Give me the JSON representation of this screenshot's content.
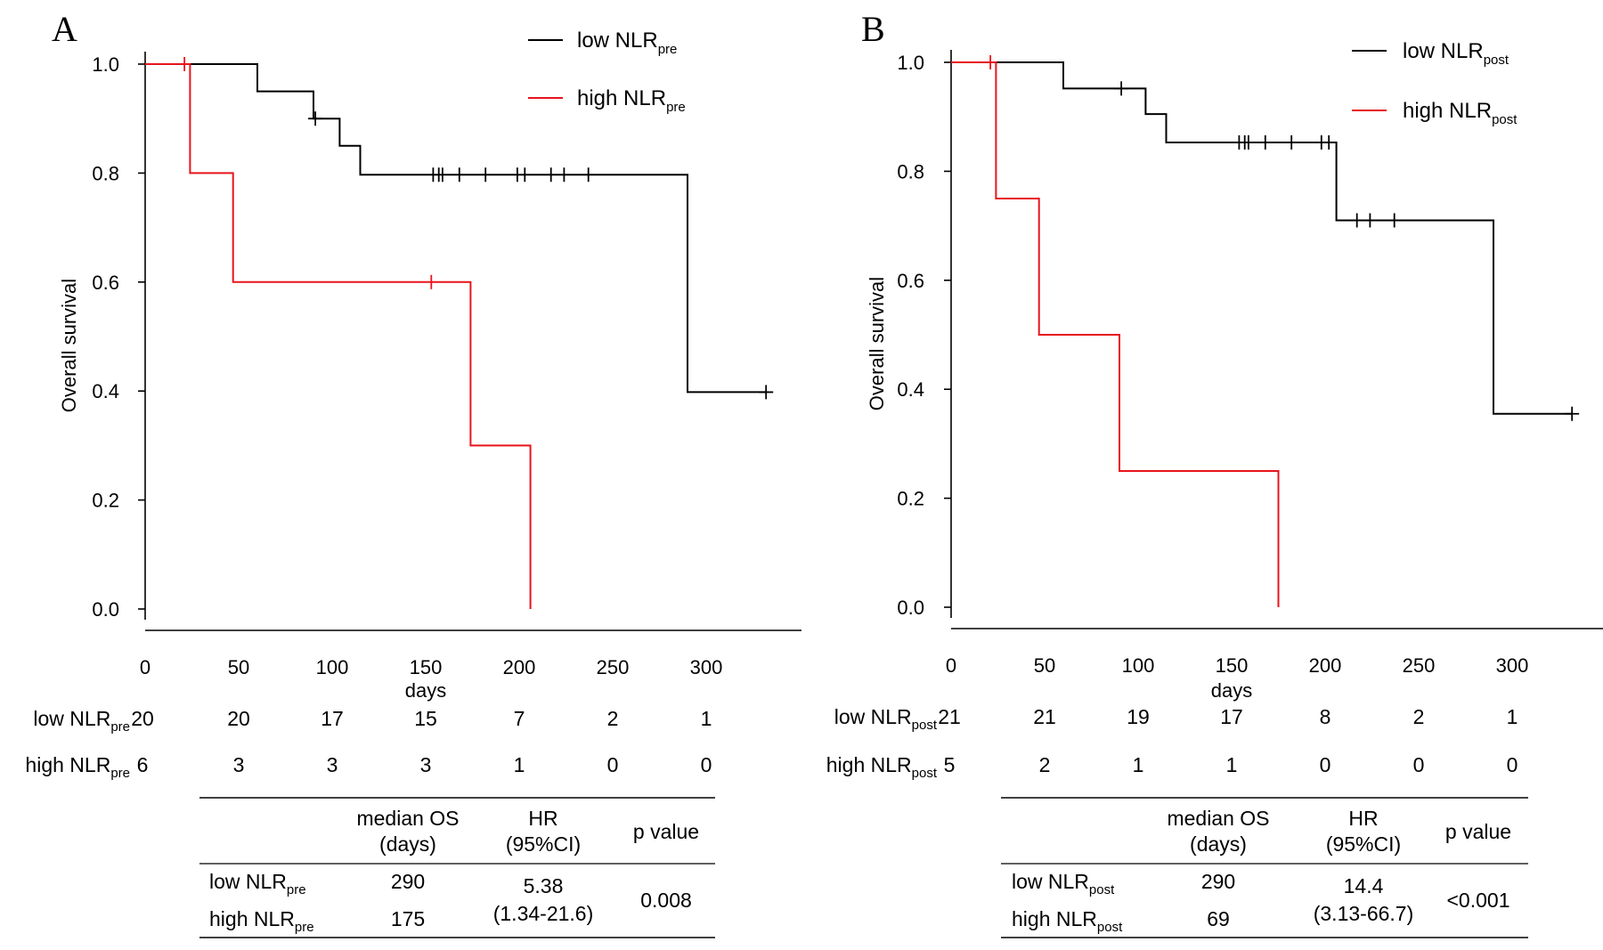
{
  "chart_data": [
    {
      "type": "line",
      "panel": "A",
      "xlabel": "days",
      "ylabel": "Overall survival",
      "xlim": [
        0,
        335
      ],
      "ylim": [
        0,
        1
      ],
      "x_ticks": [
        "0",
        "50",
        "100",
        "150",
        "200",
        "250",
        "300"
      ],
      "x_tick_values": [
        0,
        50,
        100,
        150,
        200,
        250,
        300
      ],
      "y_ticks": [
        "0.0",
        "0.2",
        "0.4",
        "0.6",
        "0.8",
        "1.0"
      ],
      "y_tick_values": [
        0,
        0.2,
        0.4,
        0.6,
        0.8,
        1.0
      ],
      "legend_position": "top-right",
      "series": [
        {
          "name": "low NLR",
          "name_sub": "pre",
          "color": "#000000",
          "steps": [
            [
              0,
              1.0
            ],
            [
              60,
              0.95
            ],
            [
              90,
              0.9
            ],
            [
              104,
              0.85
            ],
            [
              115,
              0.797
            ],
            [
              290,
              0.398
            ],
            [
              332,
              0.398
            ]
          ],
          "censors": [
            [
              91,
              0.9
            ],
            [
              154,
              0.797
            ],
            [
              157,
              0.797
            ],
            [
              159,
              0.797
            ],
            [
              168,
              0.797
            ],
            [
              182,
              0.797
            ],
            [
              199,
              0.797
            ],
            [
              203,
              0.797
            ],
            [
              217,
              0.797
            ],
            [
              224,
              0.797
            ],
            [
              237,
              0.797
            ],
            [
              332,
              0.398
            ]
          ]
        },
        {
          "name": "high NLR",
          "name_sub": "pre",
          "color": "#e8141b",
          "steps": [
            [
              0,
              1.0
            ],
            [
              24,
              0.8
            ],
            [
              47,
              0.6
            ],
            [
              174,
              0.3
            ],
            [
              206,
              0.0
            ]
          ],
          "censors": [
            [
              21,
              1.0
            ],
            [
              153,
              0.6
            ]
          ]
        }
      ],
      "risk_table": {
        "times": [
          0,
          50,
          100,
          150,
          200,
          250,
          300
        ],
        "rows": [
          {
            "label": "low NLR",
            "sub": "pre",
            "counts": [
              "20",
              "20",
              "17",
              "15",
              "7",
              "2",
              "1"
            ]
          },
          {
            "label": "high NLR",
            "sub": "pre",
            "counts": [
              "6",
              "3",
              "3",
              "3",
              "1",
              "0",
              "0"
            ]
          }
        ]
      },
      "summary_table": {
        "headers": [
          [
            "median OS",
            "(days)"
          ],
          [
            "HR",
            "(95%CI)"
          ],
          [
            "p value"
          ]
        ],
        "rows": [
          {
            "label": "low NLR",
            "sub": "pre",
            "median_os": "290"
          },
          {
            "label": "high NLR",
            "sub": "pre",
            "median_os": "175"
          }
        ],
        "hr": "5.38",
        "ci": "(1.34-21.6)",
        "p_value": "0.008"
      }
    },
    {
      "type": "line",
      "panel": "B",
      "xlabel": "days",
      "ylabel": "Overall survival",
      "xlim": [
        0,
        335
      ],
      "ylim": [
        0,
        1
      ],
      "x_ticks": [
        "0",
        "50",
        "100",
        "150",
        "200",
        "250",
        "300"
      ],
      "x_tick_values": [
        0,
        50,
        100,
        150,
        200,
        250,
        300
      ],
      "y_ticks": [
        "0.0",
        "0.2",
        "0.4",
        "0.6",
        "0.8",
        "1.0"
      ],
      "y_tick_values": [
        0,
        0.2,
        0.4,
        0.6,
        0.8,
        1.0
      ],
      "legend_position": "top-right",
      "series": [
        {
          "name": "low NLR",
          "name_sub": "post",
          "color": "#000000",
          "steps": [
            [
              0,
              1.0
            ],
            [
              60,
              0.952
            ],
            [
              104,
              0.905
            ],
            [
              115,
              0.853
            ],
            [
              206,
              0.71
            ],
            [
              290,
              0.355
            ],
            [
              332,
              0.355
            ]
          ],
          "censors": [
            [
              91,
              0.952
            ],
            [
              154,
              0.853
            ],
            [
              157,
              0.853
            ],
            [
              159,
              0.853
            ],
            [
              168,
              0.853
            ],
            [
              182,
              0.853
            ],
            [
              198,
              0.853
            ],
            [
              202,
              0.853
            ],
            [
              217,
              0.71
            ],
            [
              224,
              0.71
            ],
            [
              237,
              0.71
            ],
            [
              332,
              0.355
            ]
          ]
        },
        {
          "name": "high NLR",
          "name_sub": "post",
          "color": "#e8141b",
          "steps": [
            [
              0,
              1.0
            ],
            [
              24,
              0.75
            ],
            [
              47,
              0.5
            ],
            [
              90,
              0.25
            ],
            [
              175,
              0.0
            ]
          ],
          "censors": [
            [
              21,
              1.0
            ]
          ]
        }
      ],
      "risk_table": {
        "times": [
          0,
          50,
          100,
          150,
          200,
          250,
          300
        ],
        "rows": [
          {
            "label": "low NLR",
            "sub": "post",
            "counts": [
              "21",
              "21",
              "19",
              "17",
              "8",
              "2",
              "1"
            ]
          },
          {
            "label": "high NLR",
            "sub": "post",
            "counts": [
              "5",
              "2",
              "1",
              "1",
              "0",
              "0",
              "0"
            ]
          }
        ]
      },
      "summary_table": {
        "headers": [
          [
            "median OS",
            "(days)"
          ],
          [
            "HR",
            "(95%CI)"
          ],
          [
            "p value"
          ]
        ],
        "rows": [
          {
            "label": "low NLR",
            "sub": "post",
            "median_os": "290"
          },
          {
            "label": "high NLR",
            "sub": "post",
            "median_os": "69"
          }
        ],
        "hr": "14.4",
        "ci": "(3.13-66.7)",
        "p_value": "<0.001"
      }
    }
  ]
}
